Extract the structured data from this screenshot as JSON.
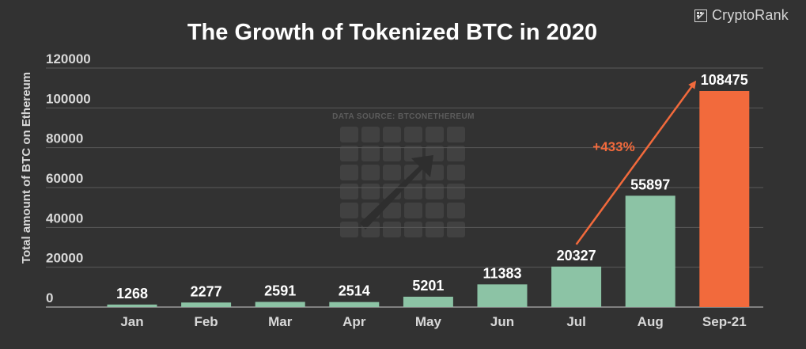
{
  "brand": {
    "name": "CryptoRank",
    "icon": "cryptorank-logo-icon"
  },
  "watermark": {
    "source_text": "DATA SOURCE: BTCONETHEREUM",
    "icon": "btconethereum-logo-icon"
  },
  "annotation": {
    "label": "+433%",
    "color": "#f26a3c"
  },
  "colors": {
    "background": "#323232",
    "bar": "#8cc3a5",
    "highlight_bar": "#f26a3c",
    "grid": "#5a5a5a",
    "text": "#ffffff",
    "tick_text": "#d8d8d8"
  },
  "chart_data": {
    "type": "bar",
    "title": "The Growth of Tokenized BTC in 2020",
    "xlabel": "",
    "ylabel": "Total amount of  BTC on Ethereum",
    "categories": [
      "Jan",
      "Feb",
      "Mar",
      "Apr",
      "May",
      "Jun",
      "Jul",
      "Aug",
      "Sep-21"
    ],
    "values": [
      1268,
      2277,
      2591,
      2514,
      5201,
      11383,
      20327,
      55897,
      108475
    ],
    "data_labels": [
      "1268",
      "2277",
      "2591",
      "2514",
      "5201",
      "11383",
      "20327",
      "55897",
      "108475"
    ],
    "highlight_category": "Sep-21",
    "ylim": [
      0,
      120000
    ],
    "yticks": [
      0,
      20000,
      40000,
      60000,
      80000,
      100000,
      120000
    ],
    "ytick_labels": [
      "0",
      "20000",
      "40000",
      "60000",
      "80000",
      "100000",
      "120000"
    ],
    "grid": true,
    "legend": "none"
  }
}
